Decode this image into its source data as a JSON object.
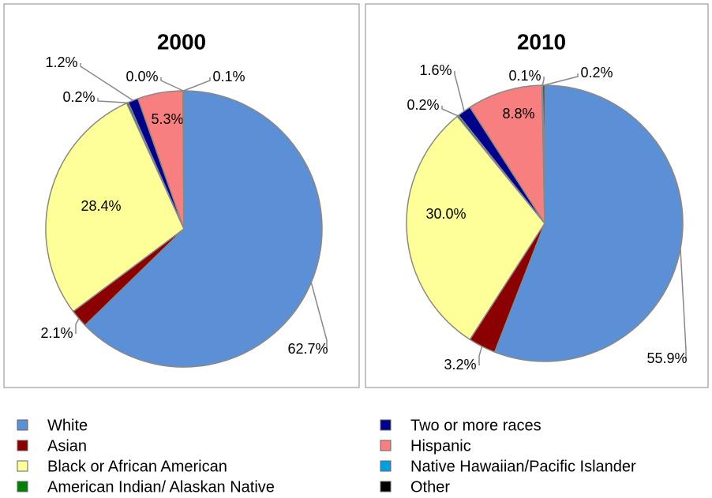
{
  "legend": {
    "labels": [
      "White",
      "Asian",
      "Black or African American",
      "American Indian/ Alaskan Native",
      "Two or more races",
      "Hispanic",
      "Native Hawaiian/Pacific Islander",
      "Other"
    ],
    "colors": [
      "#5b8fd6",
      "#8b0000",
      "#ffff99",
      "#008000",
      "#00008b",
      "#f87f7f",
      "#00a0e0",
      "#000000"
    ]
  },
  "chart_data": [
    {
      "type": "pie",
      "title": "2000",
      "values": [
        62.7,
        2.1,
        28.4,
        0.2,
        1.2,
        5.3,
        0.0,
        0.1
      ],
      "value_labels": [
        "62.7%",
        "2.1%",
        "28.4%",
        "0.2%",
        "1.2%",
        "5.3%",
        "0.0%",
        "0.1%"
      ]
    },
    {
      "type": "pie",
      "title": "2010",
      "values": [
        55.9,
        3.2,
        30.0,
        0.2,
        1.6,
        8.8,
        0.1,
        0.2
      ],
      "value_labels": [
        "55.9%",
        "3.2%",
        "30.0%",
        "0.2%",
        "1.6%",
        "8.8%",
        "0.1%",
        "0.2%"
      ]
    }
  ]
}
